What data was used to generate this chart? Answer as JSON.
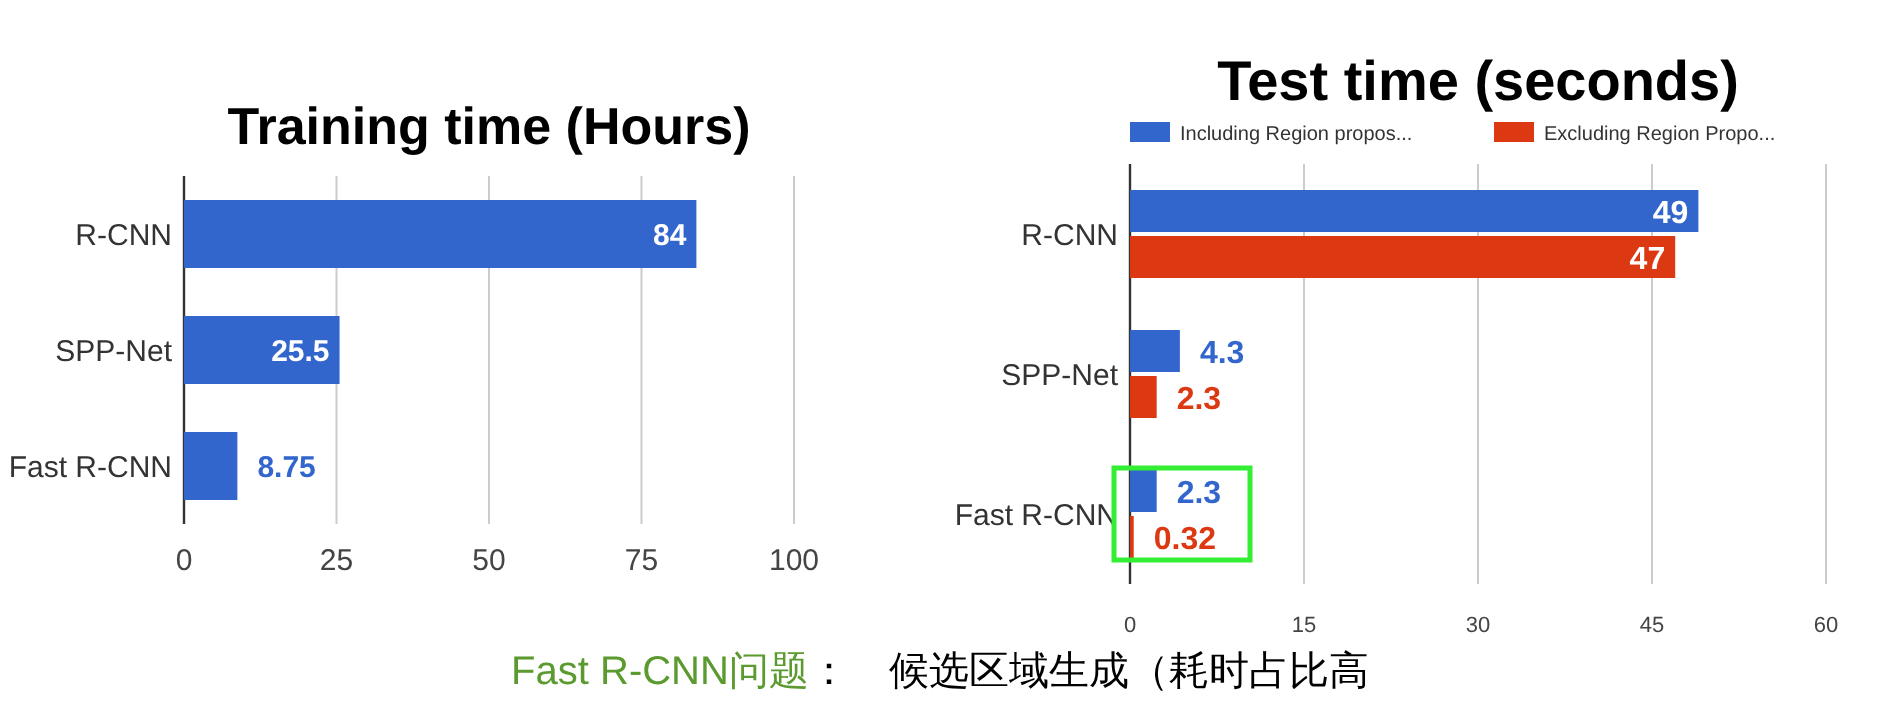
{
  "chart_data": [
    {
      "type": "bar",
      "orientation": "horizontal",
      "title": "Training time (Hours)",
      "categories": [
        "R-CNN",
        "SPP-Net",
        "Fast R-CNN"
      ],
      "values": [
        84,
        25.5,
        8.75
      ],
      "color": "#3366cc",
      "xlim": [
        0,
        100
      ],
      "xticks": [
        0,
        25,
        50,
        75,
        100
      ],
      "grid": "x",
      "data_labels": true
    },
    {
      "type": "bar",
      "orientation": "horizontal",
      "title": "Test time (seconds)",
      "categories": [
        "R-CNN",
        "SPP-Net",
        "Fast R-CNN"
      ],
      "series": [
        {
          "name": "Including Region propos...",
          "color": "#3366cc",
          "values": [
            49,
            4.3,
            2.3
          ]
        },
        {
          "name": "Excluding Region Propo...",
          "color": "#dc3912",
          "values": [
            47,
            2.3,
            0.32
          ]
        }
      ],
      "xlim": [
        0,
        60
      ],
      "xticks": [
        0,
        15,
        30,
        45,
        60
      ],
      "grid": "x",
      "legend": "top",
      "data_labels": true,
      "annotations": [
        "Fast R-CNN问题",
        "：　候选区域生成（耗时占比高"
      ]
    }
  ]
}
